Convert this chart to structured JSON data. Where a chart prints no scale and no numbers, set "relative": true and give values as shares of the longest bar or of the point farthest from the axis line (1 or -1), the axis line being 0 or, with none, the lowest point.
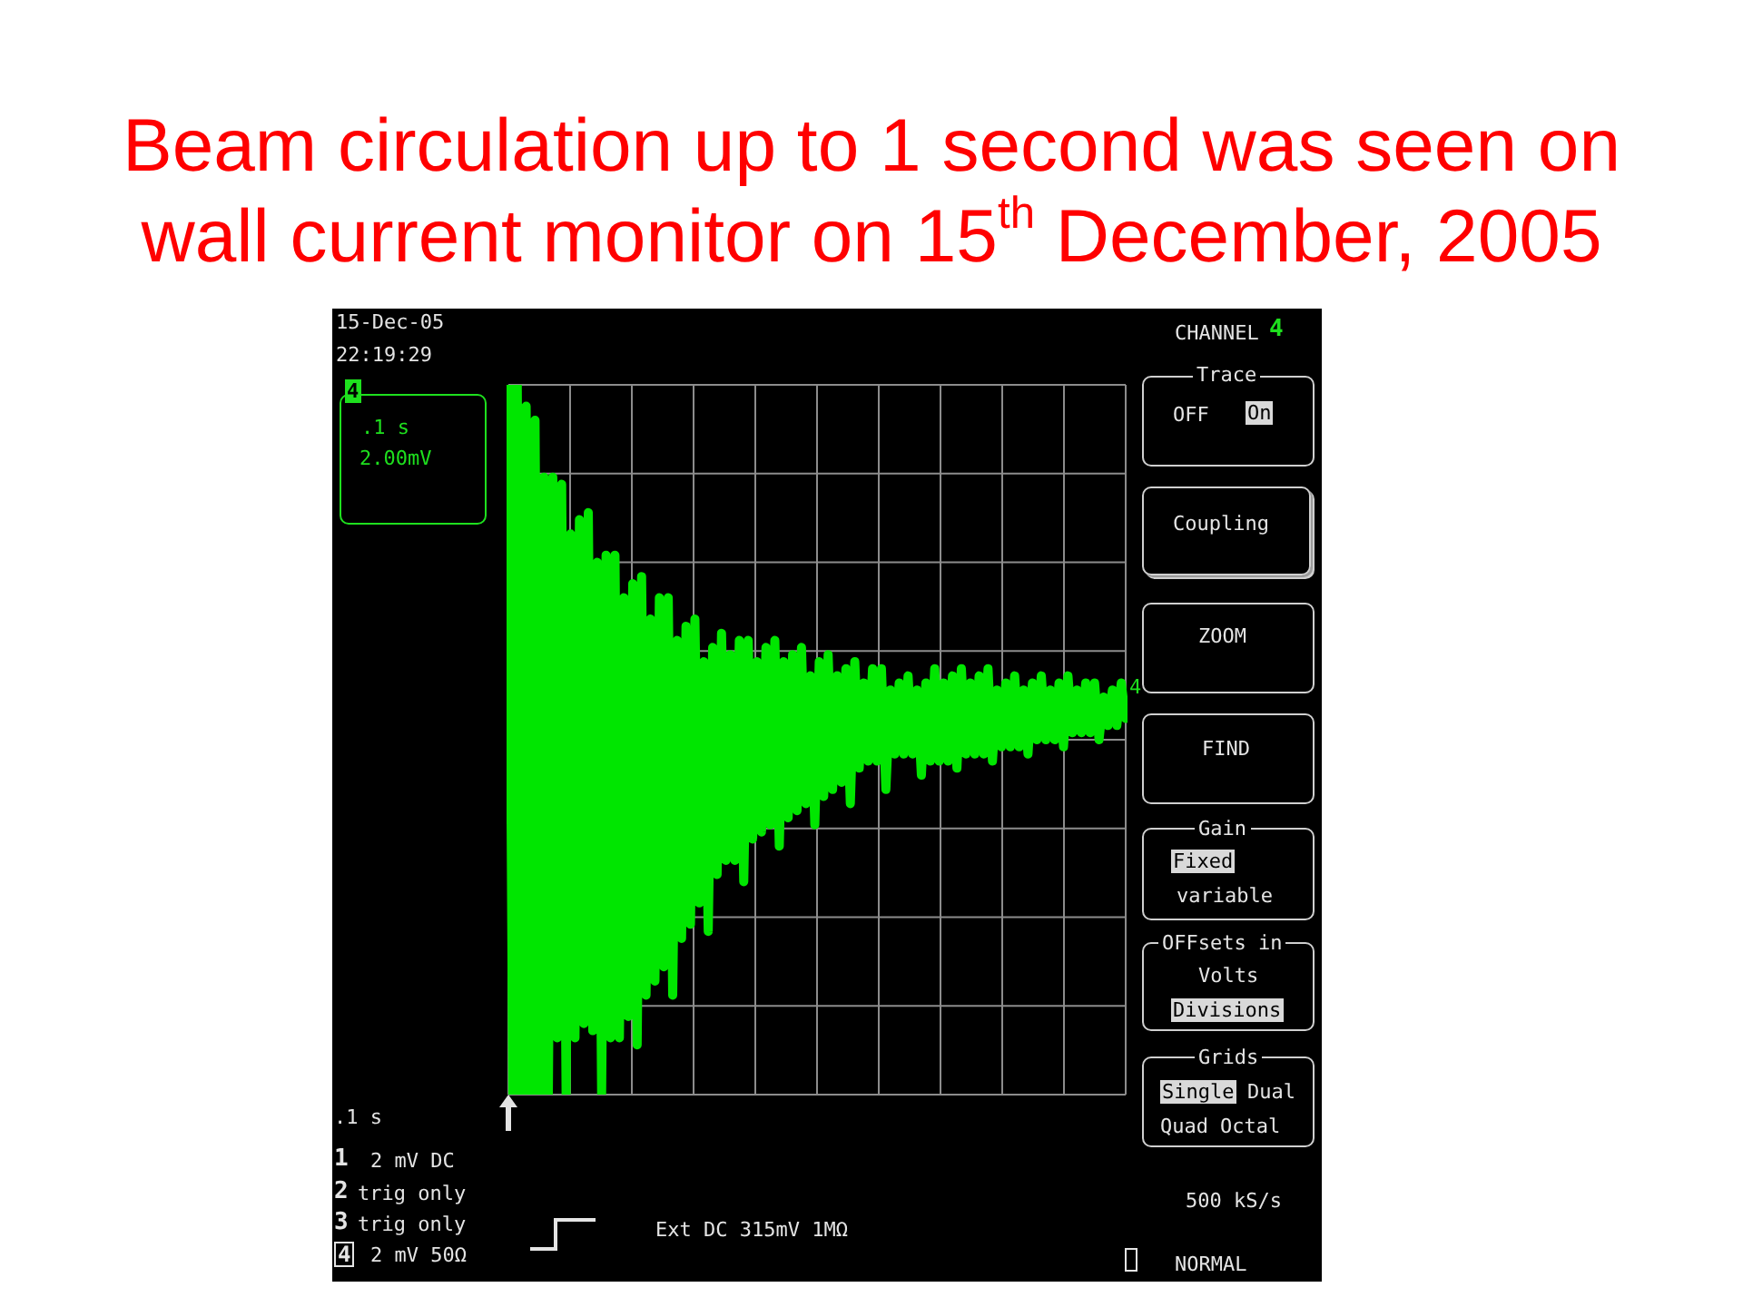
{
  "chart_data": {
    "type": "line",
    "title": "Beam circulation up to 1 second was seen on wall current monitor on 15$^{th}$ December, 2005",
    "annotations": [
      "15-Dec-05",
      "22:19:29",
      "4",
      ".1 s",
      "2.00mV",
      "CHANNEL",
      "4",
      "Trace",
      "OFF",
      "On",
      "Coupling",
      "ZOOM",
      "FIND",
      "Gain",
      "Fixed",
      "variable",
      "OFFsets in",
      "Volts",
      "Divisions",
      "Grids",
      "Single",
      "Dual",
      "Quad",
      "Octal",
      "500 kS/s",
      "NORMAL",
      "4",
      ".1 s",
      "1",
      "2 mV DC",
      "2",
      "trig only",
      "3",
      "trig only",
      "4",
      "2 mV 50Ω",
      "Ext DC 315mV 1MΩ"
    ],
    "categories": [
      null,
      null,
      null,
      null,
      null,
      null,
      null,
      null,
      null,
      null,
      null,
      null,
      null,
      null,
      null,
      null,
      null,
      null,
      null,
      null,
      null,
      null,
      null,
      null,
      null,
      null,
      null,
      null,
      null,
      null,
      null,
      null,
      null,
      null,
      null,
      null,
      null,
      null,
      null,
      null,
      null,
      null,
      null,
      null,
      null,
      null,
      null,
      null,
      null,
      null,
      null,
      null,
      null,
      null,
      null,
      null,
      null,
      null,
      null,
      null,
      null,
      null,
      null,
      null,
      null,
      null,
      null,
      null,
      null,
      null,
      null,
      null,
      null,
      null,
      null,
      null,
      null,
      null,
      null,
      null,
      null,
      null,
      null,
      null,
      null,
      null,
      null,
      null,
      null,
      null,
      null,
      null,
      null,
      null,
      null,
      null,
      null,
      null,
      null,
      null,
      null,
      null,
      null,
      null,
      null,
      null,
      null,
      null,
      null,
      null,
      null,
      null,
      null,
      null,
      null,
      null,
      null,
      null,
      null,
      null,
      null,
      null,
      null,
      null,
      null,
      null,
      null,
      null,
      null,
      null,
      null,
      null,
      null,
      null,
      null,
      null,
      null,
      null,
      null,
      null
    ],
    "values": [
      1.0,
      0,
      1.0,
      0,
      0.97,
      0,
      0.95,
      0,
      0.87,
      0,
      0.87,
      0.08,
      0.86,
      0,
      0.79,
      0.08,
      0.81,
      0.1,
      0.82,
      0.09,
      0.75,
      0,
      0.76,
      0.08,
      0.76,
      0.08,
      0.7,
      0.11,
      0.72,
      0.07,
      0.73,
      0.14,
      0.67,
      0.16,
      0.7,
      0.18,
      0.7,
      0.14,
      0.64,
      0.22,
      0.66,
      0.24,
      0.67,
      0.27,
      0.61,
      0.23,
      0.63,
      0.31,
      0.65,
      0.33,
      0.62,
      0.33,
      0.64,
      0.3,
      0.64,
      0.36,
      0.61,
      0.37,
      0.63,
      0.38,
      0.64,
      0.35,
      0.61,
      0.39,
      0.62,
      0.4,
      0.63,
      0.41,
      0.59,
      0.38,
      0.61,
      0.42,
      0.62,
      0.43,
      0.59,
      0.44,
      0.6,
      0.41,
      0.61,
      0.46,
      0.58,
      0.47,
      0.6,
      0.47,
      0.6,
      0.43,
      0.57,
      0.48,
      0.58,
      0.48,
      0.59,
      0.48,
      0.57,
      0.45,
      0.58,
      0.47,
      0.6,
      0.47,
      0.58,
      0.47,
      0.59,
      0.46,
      0.6,
      0.48,
      0.58,
      0.48,
      0.59,
      0.48,
      0.6,
      0.47,
      0.57,
      0.49,
      0.58,
      0.49,
      0.59,
      0.49,
      0.57,
      0.48,
      0.58,
      0.5,
      0.59,
      0.5,
      0.57,
      0.5,
      0.58,
      0.49,
      0.59,
      0.51,
      0.57,
      0.51,
      0.58,
      0.51,
      0.58,
      0.5,
      0.56,
      0.52,
      0.57,
      0.52,
      0.58,
      0.53
    ],
    "color": "#00e600",
    "relative": true,
    "grid": true,
    "tick_labels": false,
    "marker": "none",
    "line_style": "solid"
  }
}
